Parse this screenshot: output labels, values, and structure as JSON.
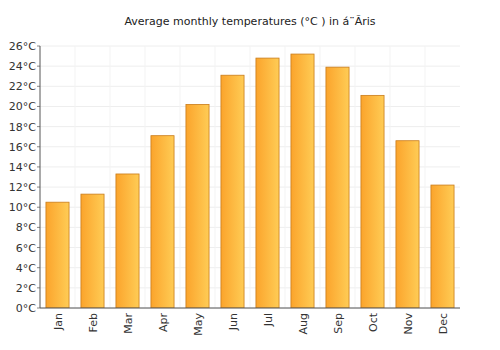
{
  "chart_data": {
    "type": "bar",
    "title": "Average monthly temperatures (°C ) in á¨Ãris",
    "categories": [
      "Jan",
      "Feb",
      "Mar",
      "Apr",
      "May",
      "Jun",
      "Jul",
      "Aug",
      "Sep",
      "Oct",
      "Nov",
      "Dec"
    ],
    "values": [
      10.5,
      11.3,
      13.3,
      17.1,
      20.2,
      23.1,
      24.8,
      25.2,
      23.9,
      21.1,
      16.6,
      12.2
    ],
    "color": "#fba42c",
    "ylim": [
      0,
      26
    ],
    "yticks": [
      {
        "value": 0,
        "label": "0°C"
      },
      {
        "value": 2,
        "label": "2°C"
      },
      {
        "value": 4,
        "label": "4°C"
      },
      {
        "value": 6,
        "label": "6°C"
      },
      {
        "value": 8,
        "label": "8°C"
      },
      {
        "value": 10,
        "label": "10°C"
      },
      {
        "value": 12,
        "label": "12°C"
      },
      {
        "value": 14,
        "label": "14°C"
      },
      {
        "value": 16,
        "label": "16°C"
      },
      {
        "value": 18,
        "label": "18°C"
      },
      {
        "value": 20,
        "label": "20°C"
      },
      {
        "value": 22,
        "label": "22°C"
      },
      {
        "value": 24,
        "label": "24°C"
      },
      {
        "value": 26,
        "label": "26°C"
      }
    ],
    "grid": true
  }
}
